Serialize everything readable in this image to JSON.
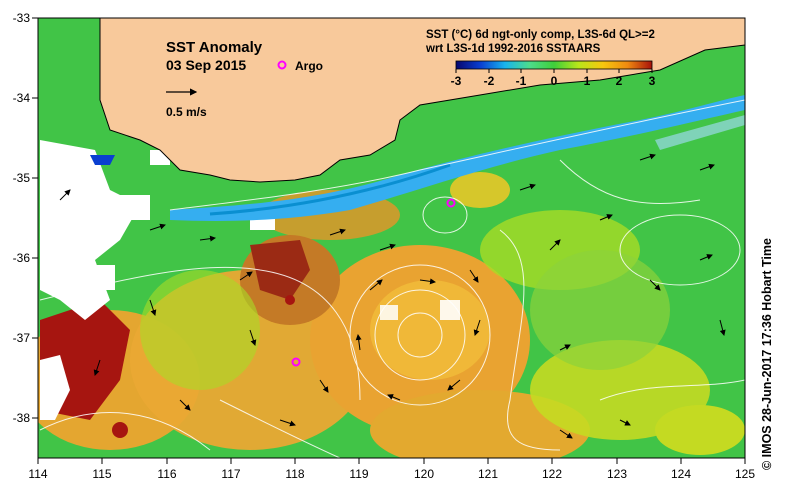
{
  "title": "SST Anomaly",
  "date": "03 Sep 2015",
  "argo_legend": "Argo",
  "vector_scale": "0.5 m/s",
  "colorbar": {
    "title_line1": "SST (°C) 6d ngt-only comp, L3S-6d QL>=2",
    "title_line2": "wrt L3S-1d 1992-2016 SSTAARS",
    "ticks": [
      "-3",
      "-2",
      "-1",
      "0",
      "1",
      "2",
      "3"
    ],
    "colors": [
      "#06066e",
      "#0a3fd1",
      "#18b4ee",
      "#4ddc8c",
      "#3fcf3a",
      "#b9e61a",
      "#f7c70e",
      "#ef8a10",
      "#a8110a"
    ]
  },
  "axes": {
    "x_ticks": [
      "114",
      "115",
      "116",
      "117",
      "118",
      "119",
      "120",
      "121",
      "122",
      "123",
      "124",
      "125"
    ],
    "y_ticks": [
      "-33",
      "-34",
      "-35",
      "-36",
      "-37",
      "-38"
    ]
  },
  "credit": "© IMOS 28-Jun-2017 17:36 Hobart Time",
  "map_colors": {
    "land": "#f8c99b",
    "ocean": "#41c447",
    "warm": "#f0a230",
    "hot": "#a61510",
    "cool": "#35aef0",
    "no_data": "#ffffff",
    "argo": "#ff00ff"
  }
}
